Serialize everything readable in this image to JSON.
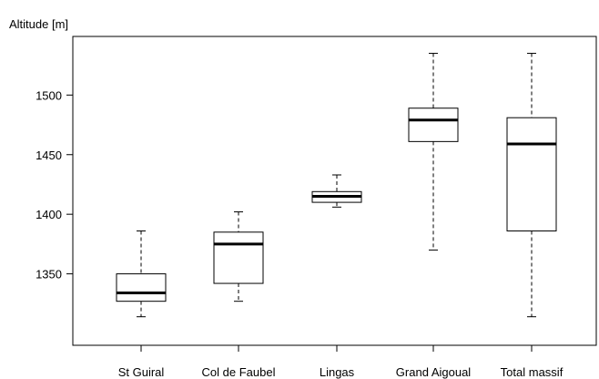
{
  "chart_data": {
    "type": "boxplot",
    "ylabel": "Altitude [m]",
    "ylim": [
      1300,
      1540
    ],
    "yticks": [
      1350,
      1400,
      1450,
      1500
    ],
    "categories": [
      "St Guiral",
      "Col de Faubel",
      "Lingas",
      "Grand Aigoual",
      "Total massif"
    ],
    "boxes": [
      {
        "whisker_low": 1314,
        "q1": 1327,
        "median": 1334,
        "q3": 1350,
        "whisker_high": 1386
      },
      {
        "whisker_low": 1327,
        "q1": 1342,
        "median": 1375,
        "q3": 1385,
        "whisker_high": 1402
      },
      {
        "whisker_low": 1406,
        "q1": 1410,
        "median": 1415,
        "q3": 1419,
        "whisker_high": 1433
      },
      {
        "whisker_low": 1370,
        "q1": 1461,
        "median": 1479,
        "q3": 1489,
        "whisker_high": 1535
      },
      {
        "whisker_low": 1314,
        "q1": 1386,
        "median": 1459,
        "q3": 1481,
        "whisker_high": 1535
      }
    ],
    "grid": false,
    "legend": "none"
  }
}
